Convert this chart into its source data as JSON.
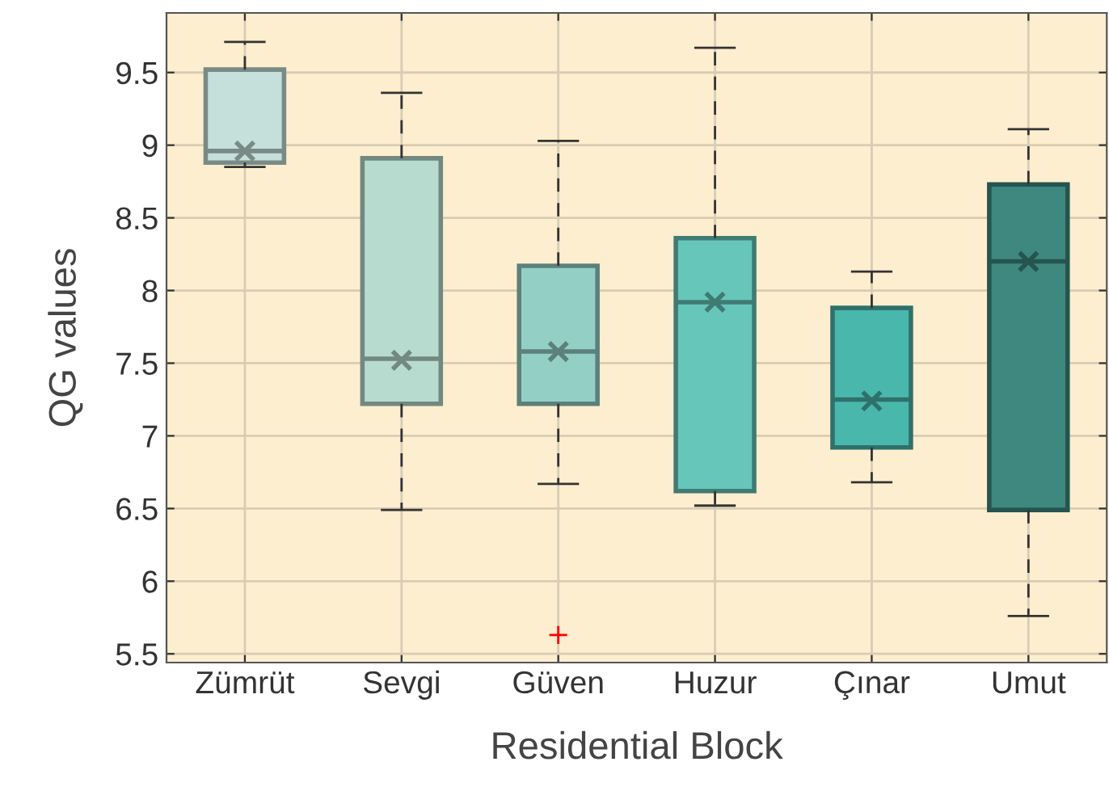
{
  "chart_data": {
    "type": "box",
    "xlabel": "Residential Block",
    "ylabel": "QG values",
    "categories": [
      "Zümrüt",
      "Sevgi",
      "Güven",
      "Huzur",
      "Çınar",
      "Umut"
    ],
    "colors": [
      "#c5e0da",
      "#b8dbd0",
      "#94cfc6",
      "#67c6ba",
      "#4ab7ad",
      "#3e8880"
    ],
    "boxes": [
      {
        "low": 8.85,
        "q1": 8.88,
        "median": 8.96,
        "q3": 9.52,
        "high": 9.71,
        "mean": 8.96
      },
      {
        "low": 6.49,
        "q1": 7.22,
        "median": 7.53,
        "q3": 8.91,
        "high": 9.36,
        "mean": 7.52
      },
      {
        "low": 6.67,
        "q1": 7.22,
        "median": 7.58,
        "q3": 8.17,
        "high": 9.03,
        "mean": 7.58,
        "outliers": [
          5.63
        ]
      },
      {
        "low": 6.52,
        "q1": 6.62,
        "median": 7.92,
        "q3": 8.36,
        "high": 9.67,
        "mean": 7.92
      },
      {
        "low": 6.68,
        "q1": 6.92,
        "median": 7.25,
        "q3": 7.88,
        "high": 8.13,
        "mean": 7.24
      },
      {
        "low": 5.76,
        "q1": 6.49,
        "median": 8.2,
        "q3": 8.73,
        "high": 9.11,
        "mean": 8.2
      }
    ],
    "ylim": [
      5.44,
      9.91
    ],
    "yticks": [
      5.5,
      6,
      6.5,
      7,
      7.5,
      8,
      8.5,
      9,
      9.5
    ],
    "grid": true
  }
}
